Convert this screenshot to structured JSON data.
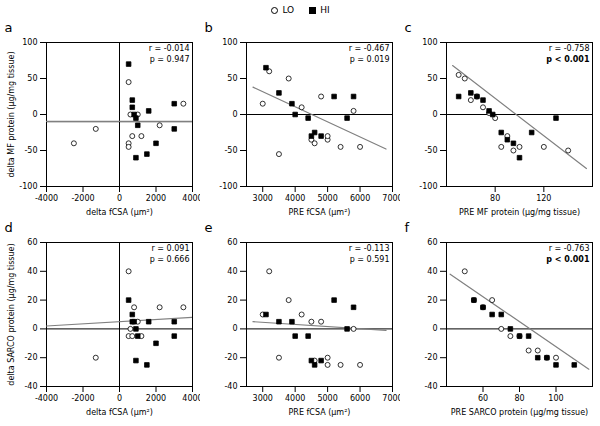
{
  "chart_data": [
    {
      "type": "scatter",
      "title": "a",
      "legend": "top",
      "grid": false,
      "xlabel": "delta fCSA (μm²)",
      "ylabel": "delta MF protein (μg/mg tissue)",
      "xlim": [
        -4000,
        4000
      ],
      "ylim": [
        -100,
        100
      ],
      "xticks": [
        -4000,
        -2000,
        0,
        2000,
        4000
      ],
      "yticks": [
        -100,
        -50,
        0,
        50,
        100
      ],
      "hline": -10,
      "vline": 0,
      "regression_line": {
        "x": [
          -4000,
          4000
        ],
        "values": [
          -9.44,
          -9.44
        ],
        "color": "gray"
      },
      "annotations": [
        {
          "text": "r = -0.014"
        },
        {
          "text": "p = 0.947"
        }
      ],
      "series": [
        {
          "name": "LO",
          "marker": "circle",
          "color": "black",
          "x": [
            -2500,
            -1300,
            500,
            600,
            700,
            1000,
            1200,
            2200,
            3500,
            500,
            500
          ],
          "values": [
            -40,
            -20,
            45,
            0,
            -30,
            0,
            -30,
            -15,
            15,
            -40,
            -45
          ]
        },
        {
          "name": "HI",
          "marker": "square",
          "color": "black",
          "x": [
            500,
            700,
            700,
            800,
            900,
            900,
            1000,
            1500,
            1600,
            2000,
            3000,
            3000
          ],
          "values": [
            70,
            20,
            10,
            0,
            -5,
            -60,
            -15,
            -55,
            5,
            -40,
            -20,
            15
          ]
        }
      ]
    },
    {
      "type": "scatter",
      "title": "b",
      "grid": false,
      "xlabel": "PRE fCSA (μm²)",
      "xlim": [
        2500,
        7000
      ],
      "ylim": [
        -100,
        100
      ],
      "xticks": [
        3000,
        4000,
        5000,
        6000,
        7000
      ],
      "yticks": [
        -100,
        -50,
        0,
        50,
        100
      ],
      "hline": 0,
      "regression_line": {
        "x": [
          2700,
          6800
        ],
        "values": [
          38,
          -48
        ],
        "color": "gray"
      },
      "annotations": [
        {
          "text": "r = -0.467"
        },
        {
          "text": "p = 0.019"
        }
      ],
      "series": [
        {
          "name": "LO",
          "marker": "circle",
          "color": "black",
          "x": [
            3000,
            3200,
            3500,
            3800,
            4200,
            4500,
            4600,
            4800,
            5000,
            5000,
            5400,
            5800,
            6000
          ],
          "values": [
            15,
            60,
            -55,
            50,
            10,
            -35,
            -40,
            25,
            -35,
            -30,
            -45,
            5,
            -45
          ]
        },
        {
          "name": "HI",
          "marker": "square",
          "color": "black",
          "x": [
            3100,
            3500,
            3900,
            4000,
            4400,
            4500,
            4600,
            4800,
            5200,
            5600,
            5800
          ],
          "values": [
            65,
            30,
            15,
            0,
            -5,
            -30,
            -25,
            -30,
            25,
            -5,
            25
          ]
        }
      ]
    },
    {
      "type": "scatter",
      "title": "c",
      "grid": false,
      "xlabel": "PRE MF protein (μg/mg tissue)",
      "xlim": [
        40,
        160
      ],
      "ylim": [
        -100,
        100
      ],
      "xticks": [
        80,
        120
      ],
      "yticks": [
        -100,
        -50,
        0,
        50,
        100
      ],
      "hline": 0,
      "regression_line": {
        "x": [
          45,
          155
        ],
        "values": [
          68,
          -75
        ],
        "color": "gray"
      },
      "annotations": [
        {
          "text": "r = -0.758"
        },
        {
          "text": "p < 0.001",
          "font_weight": "bold"
        }
      ],
      "series": [
        {
          "name": "LO",
          "marker": "circle",
          "color": "black",
          "x": [
            50,
            55,
            60,
            65,
            70,
            75,
            80,
            85,
            90,
            95,
            100,
            120,
            140
          ],
          "values": [
            55,
            50,
            20,
            25,
            10,
            2,
            -5,
            -45,
            -30,
            -50,
            -45,
            -45,
            -50
          ]
        },
        {
          "name": "HI",
          "marker": "square",
          "color": "black",
          "x": [
            50,
            60,
            65,
            70,
            75,
            78,
            85,
            90,
            95,
            100,
            110,
            130
          ],
          "values": [
            25,
            30,
            25,
            20,
            5,
            0,
            -25,
            -35,
            -40,
            -60,
            -25,
            -5
          ]
        }
      ]
    },
    {
      "type": "scatter",
      "title": "d",
      "grid": false,
      "xlabel": "delta fCSA (μm²)",
      "ylabel": "delta SARCO protein (μg/mg tissue)",
      "xlim": [
        -4000,
        4000
      ],
      "ylim": [
        -40,
        60
      ],
      "xticks": [
        -4000,
        -2000,
        0,
        2000,
        4000
      ],
      "yticks": [
        -40,
        -20,
        0,
        20,
        40,
        60
      ],
      "hline": 0,
      "vline": 0,
      "regression_line": {
        "x": [
          -4000,
          4000
        ],
        "values": [
          2,
          8
        ],
        "color": "gray"
      },
      "annotations": [
        {
          "text": "r = 0.091"
        },
        {
          "text": "p = 0.666"
        }
      ],
      "series": [
        {
          "name": "LO",
          "marker": "circle",
          "color": "black",
          "x": [
            -1300,
            500,
            500,
            600,
            700,
            800,
            1000,
            1200,
            2200,
            3500
          ],
          "values": [
            -20,
            40,
            -5,
            0,
            -5,
            15,
            5,
            -5,
            15,
            15
          ]
        },
        {
          "name": "HI",
          "marker": "square",
          "color": "black",
          "x": [
            500,
            700,
            700,
            800,
            900,
            900,
            1000,
            1500,
            1600,
            2000,
            3000,
            3000
          ],
          "values": [
            20,
            10,
            5,
            5,
            0,
            -22,
            -5,
            -25,
            5,
            -10,
            -5,
            5
          ]
        }
      ]
    },
    {
      "type": "scatter",
      "title": "e",
      "grid": false,
      "xlabel": "PRE fCSA (μm²)",
      "xlim": [
        2500,
        7000
      ],
      "ylim": [
        -40,
        60
      ],
      "xticks": [
        3000,
        4000,
        5000,
        6000,
        7000
      ],
      "yticks": [
        -40,
        -20,
        0,
        20,
        40,
        60
      ],
      "hline": 0,
      "regression_line": {
        "x": [
          2700,
          6800
        ],
        "values": [
          5,
          -1
        ],
        "color": "gray"
      },
      "annotations": [
        {
          "text": "r = -0.113"
        },
        {
          "text": "p = 0.591"
        }
      ],
      "series": [
        {
          "name": "LO",
          "marker": "circle",
          "color": "black",
          "x": [
            3000,
            3200,
            3500,
            3800,
            4200,
            4500,
            4600,
            4800,
            5000,
            5000,
            5400,
            5800,
            6000
          ],
          "values": [
            10,
            40,
            -20,
            20,
            10,
            5,
            -22,
            5,
            -20,
            -25,
            -25,
            0,
            -25
          ]
        },
        {
          "name": "HI",
          "marker": "square",
          "color": "black",
          "x": [
            3100,
            3500,
            3900,
            4000,
            4400,
            4500,
            4600,
            4800,
            5200,
            5600,
            5800
          ],
          "values": [
            10,
            5,
            5,
            -5,
            -5,
            -22,
            -25,
            -22,
            20,
            0,
            15
          ]
        }
      ]
    },
    {
      "type": "scatter",
      "title": "f",
      "grid": false,
      "xlabel": "PRE SARCO protein (μg/mg tissue)",
      "xlim": [
        40,
        120
      ],
      "ylim": [
        -40,
        60
      ],
      "xticks": [
        60,
        80,
        100
      ],
      "yticks": [
        -40,
        -20,
        0,
        20,
        40,
        60
      ],
      "hline": 0,
      "regression_line": {
        "x": [
          42,
          118
        ],
        "values": [
          38,
          -28
        ],
        "color": "gray"
      },
      "annotations": [
        {
          "text": "r = -0.763"
        },
        {
          "text": "p < 0.001",
          "font_weight": "bold"
        }
      ],
      "series": [
        {
          "name": "LO",
          "marker": "circle",
          "color": "black",
          "x": [
            50,
            55,
            60,
            65,
            70,
            75,
            80,
            85,
            90,
            95,
            100
          ],
          "values": [
            40,
            20,
            15,
            20,
            0,
            -5,
            -5,
            -15,
            -15,
            -20,
            -20
          ]
        },
        {
          "name": "HI",
          "marker": "square",
          "color": "black",
          "x": [
            55,
            60,
            65,
            70,
            75,
            80,
            85,
            90,
            95,
            100,
            110
          ],
          "values": [
            20,
            15,
            10,
            10,
            0,
            -5,
            -5,
            -20,
            -20,
            -25,
            -25
          ]
        }
      ]
    }
  ]
}
